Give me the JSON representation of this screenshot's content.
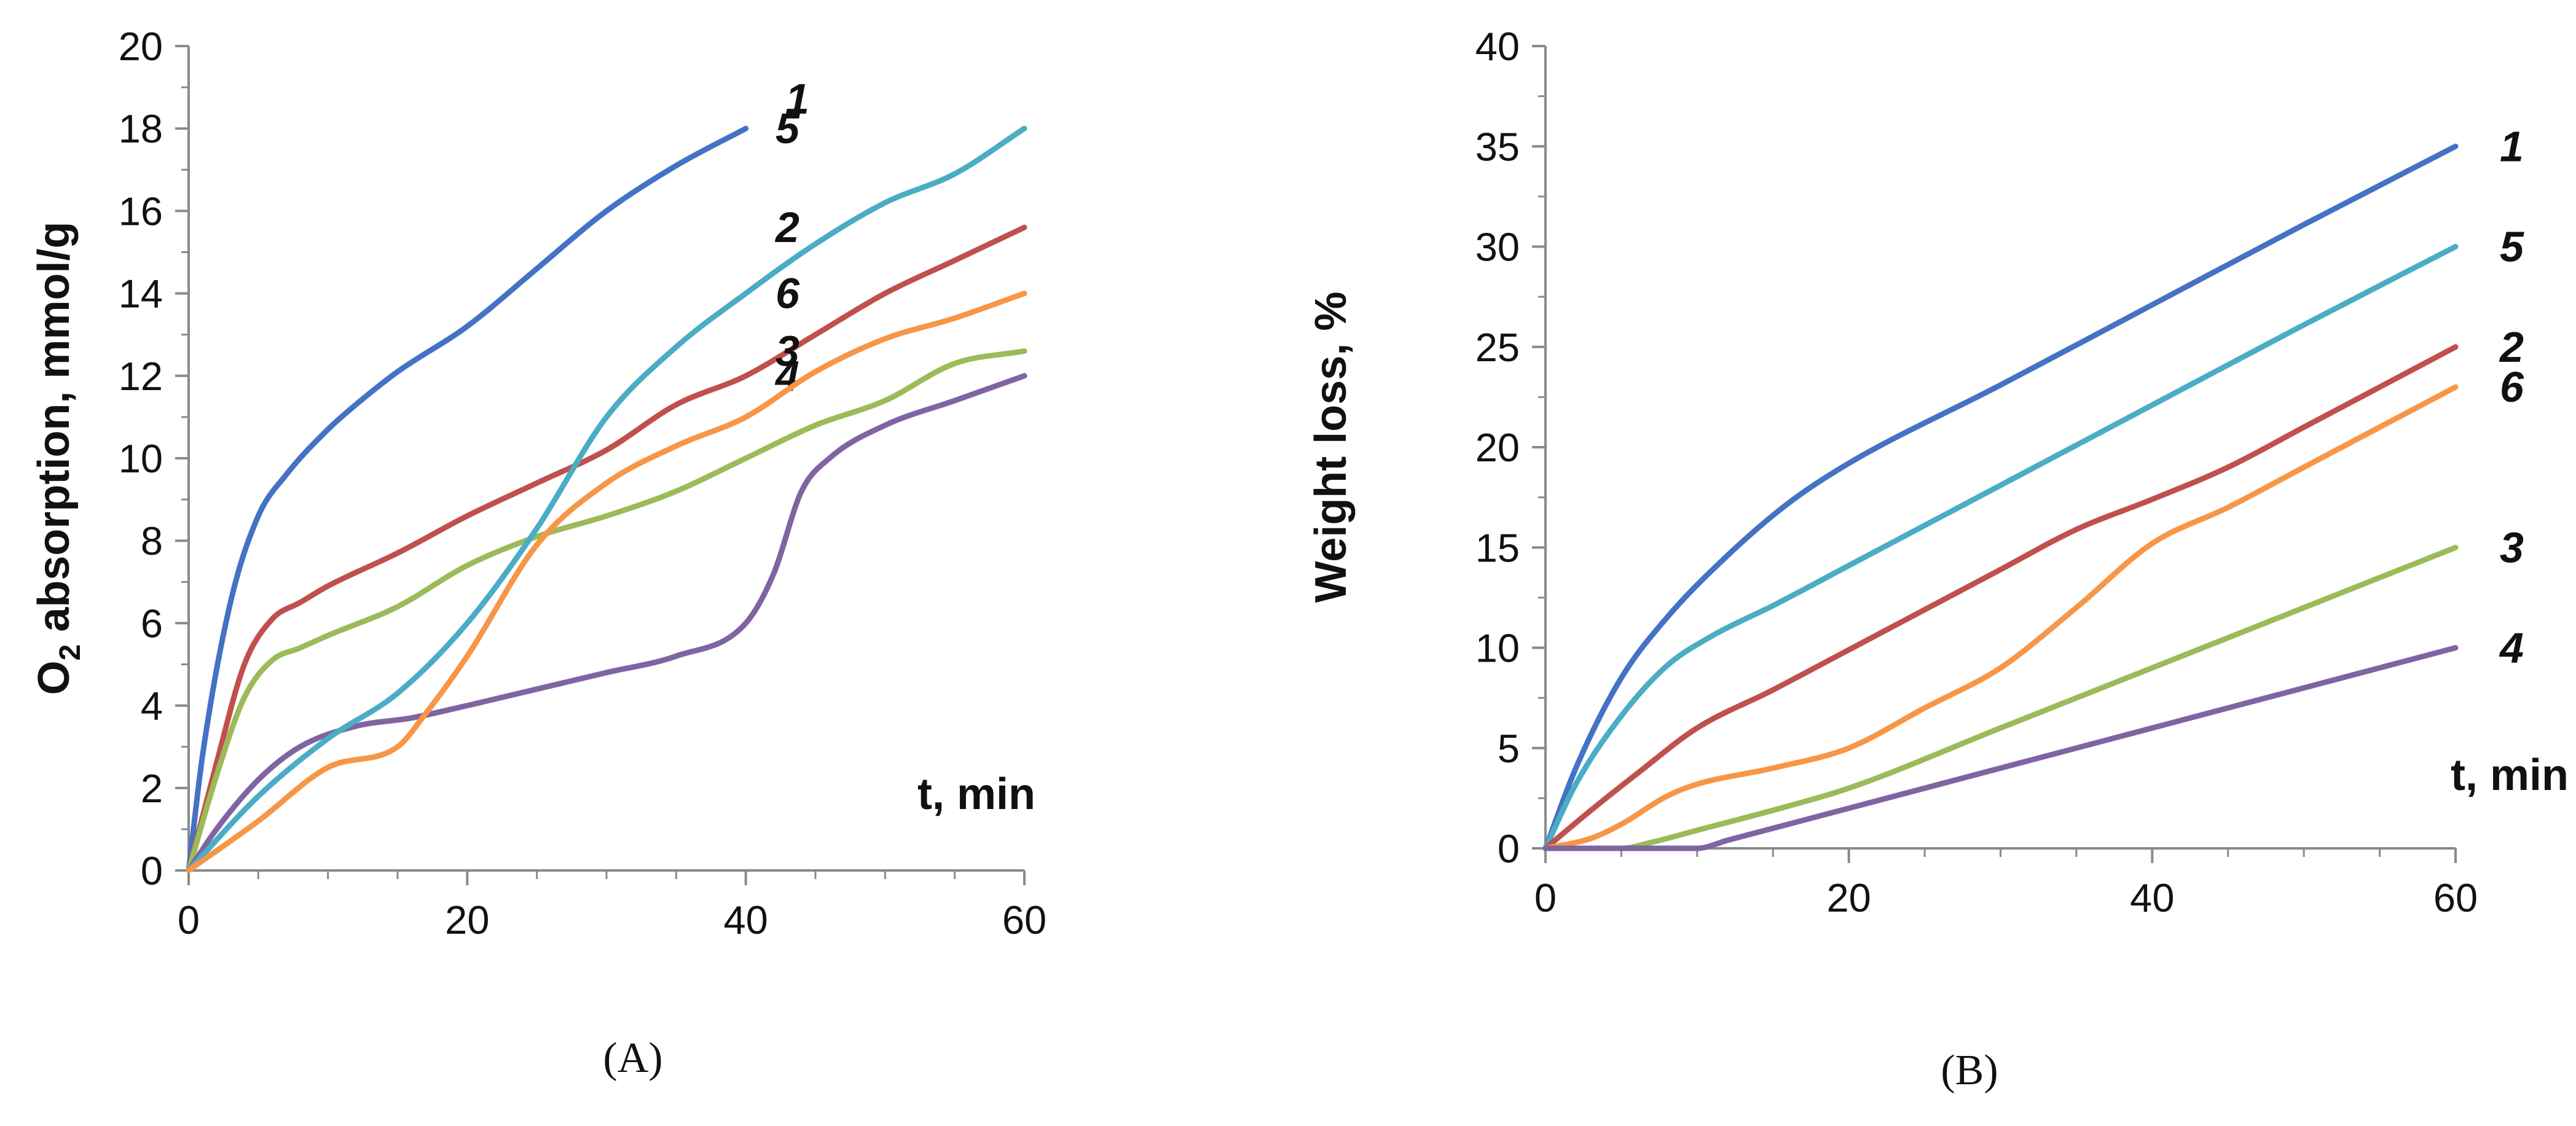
{
  "chart_data": [
    {
      "type": "line",
      "panel": "(A)",
      "ylabel_main": "O",
      "ylabel_sub": "2",
      "ylabel_rest": " absorption, mmol/g",
      "xlabel": "t, min",
      "xlim": [
        0,
        60
      ],
      "ylim": [
        0,
        20
      ],
      "xticks": [
        0,
        20,
        40,
        60
      ],
      "yticks": [
        0,
        2,
        4,
        6,
        8,
        10,
        12,
        14,
        16,
        18,
        20
      ],
      "series": [
        {
          "name": "1",
          "color": "#4472C4",
          "x": [
            0,
            1,
            3,
            5,
            7,
            10,
            12,
            15,
            20,
            25,
            30,
            35,
            40
          ],
          "values": [
            0,
            2.8,
            6.5,
            8.6,
            9.6,
            10.7,
            11.3,
            12.1,
            13.2,
            14.6,
            16.0,
            17.1,
            18.0
          ]
        },
        {
          "name": "2",
          "color": "#C0504D",
          "x": [
            0,
            2,
            4,
            6,
            8,
            10,
            15,
            20,
            25,
            30,
            35,
            40,
            45,
            50,
            55,
            60
          ],
          "values": [
            0,
            2.6,
            5.0,
            6.1,
            6.5,
            6.9,
            7.7,
            8.6,
            9.4,
            10.2,
            11.3,
            12.0,
            13.0,
            14.0,
            14.8,
            15.6
          ]
        },
        {
          "name": "3",
          "color": "#9BBB59",
          "x": [
            0,
            2,
            4,
            6,
            8,
            10,
            15,
            20,
            25,
            30,
            35,
            40,
            45,
            50,
            55,
            60
          ],
          "values": [
            0,
            2.3,
            4.2,
            5.1,
            5.4,
            5.7,
            6.4,
            7.4,
            8.1,
            8.6,
            9.2,
            10.0,
            10.8,
            11.4,
            12.3,
            12.6
          ]
        },
        {
          "name": "4",
          "color": "#8064A2",
          "x": [
            0,
            2,
            5,
            8,
            12,
            16,
            20,
            25,
            30,
            35,
            40,
            42,
            44,
            46,
            50,
            55,
            60
          ],
          "values": [
            0,
            1.0,
            2.2,
            3.0,
            3.5,
            3.7,
            4.0,
            4.4,
            4.8,
            5.2,
            6.0,
            7.2,
            9.2,
            10.0,
            10.8,
            11.4,
            12.0
          ]
        },
        {
          "name": "5",
          "color": "#4BACC6",
          "x": [
            0,
            5,
            10,
            15,
            20,
            25,
            30,
            35,
            40,
            45,
            50,
            55,
            60
          ],
          "values": [
            0,
            1.8,
            3.2,
            4.3,
            6.0,
            8.3,
            11.0,
            12.7,
            14.0,
            15.2,
            16.2,
            16.9,
            18.0
          ]
        },
        {
          "name": "6",
          "color": "#F79646",
          "x": [
            0,
            5,
            10,
            15,
            17,
            20,
            25,
            30,
            35,
            40,
            45,
            50,
            55,
            60
          ],
          "values": [
            0,
            1.2,
            2.5,
            3.0,
            3.8,
            5.2,
            7.9,
            9.4,
            10.3,
            11.0,
            12.1,
            12.9,
            13.4,
            14.0
          ]
        }
      ]
    },
    {
      "type": "line",
      "panel": "(B)",
      "ylabel": "Weight  loss, %",
      "xlabel": "t, min",
      "xlim": [
        0,
        60
      ],
      "ylim": [
        0,
        40
      ],
      "xticks": [
        0,
        20,
        40,
        60
      ],
      "yticks": [
        0,
        5,
        10,
        15,
        20,
        25,
        30,
        35,
        40
      ],
      "series": [
        {
          "name": "1",
          "color": "#4472C4",
          "x": [
            0,
            2,
            5,
            8,
            12,
            16,
            20,
            30,
            40,
            50,
            60
          ],
          "values": [
            0,
            4,
            8.5,
            11.5,
            14.6,
            17.2,
            19.2,
            23.1,
            27.1,
            31.1,
            35.0
          ]
        },
        {
          "name": "5",
          "color": "#4BACC6",
          "x": [
            0,
            2,
            5,
            8,
            11,
            15,
            20,
            30,
            40,
            50,
            60
          ],
          "values": [
            0,
            3.2,
            6.6,
            9.1,
            10.6,
            12.1,
            14.1,
            18.1,
            22.1,
            26.1,
            30.0
          ]
        },
        {
          "name": "2",
          "color": "#C0504D",
          "x": [
            0,
            3,
            6,
            10,
            15,
            20,
            25,
            30,
            35,
            40,
            45,
            50,
            55,
            60
          ],
          "values": [
            0,
            1.9,
            3.7,
            6.0,
            7.9,
            9.9,
            11.9,
            13.9,
            15.9,
            17.4,
            19.0,
            21.0,
            23.0,
            25.0
          ]
        },
        {
          "name": "6",
          "color": "#F79646",
          "x": [
            0,
            3,
            5,
            8,
            10,
            15,
            20,
            25,
            30,
            35,
            40,
            45,
            50,
            55,
            60
          ],
          "values": [
            0,
            0.5,
            1.2,
            2.6,
            3.2,
            4.0,
            5.0,
            7.0,
            9.0,
            12.0,
            15.2,
            17.0,
            19.0,
            21.0,
            23.0
          ]
        },
        {
          "name": "3",
          "color": "#9BBB59",
          "x": [
            0,
            5,
            7,
            10,
            15,
            20,
            30,
            40,
            50,
            60
          ],
          "values": [
            0,
            0,
            0.3,
            0.9,
            1.9,
            3.0,
            6.0,
            9.0,
            12.0,
            15.0
          ]
        },
        {
          "name": "4",
          "color": "#8064A2",
          "x": [
            0,
            10,
            12,
            20,
            30,
            40,
            50,
            60
          ],
          "values": [
            0,
            0,
            0.4,
            2.0,
            4.0,
            6.0,
            8.0,
            10.0
          ]
        }
      ]
    }
  ]
}
